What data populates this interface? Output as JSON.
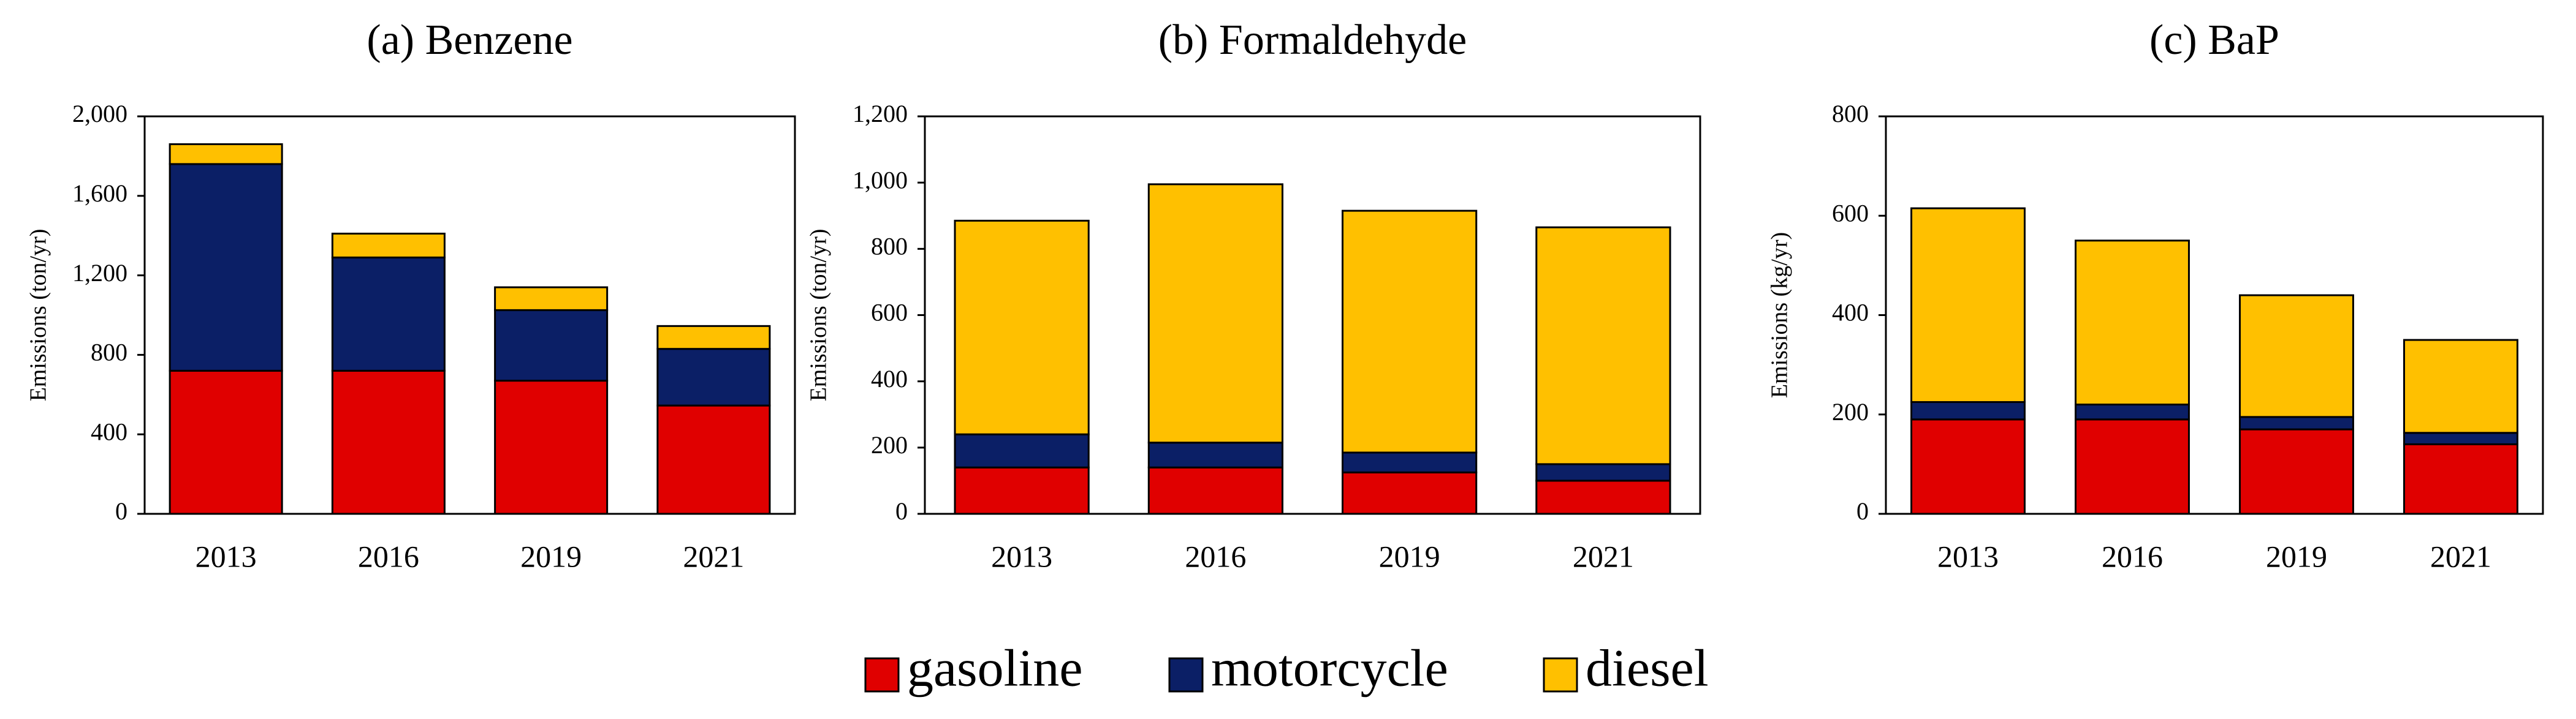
{
  "legend": [
    {
      "name": "gasoline",
      "color": "#e00000"
    },
    {
      "name": "motorcycle",
      "color": "#0b1f66"
    },
    {
      "name": "diesel",
      "color": "#ffc000"
    }
  ],
  "chart_data": [
    {
      "type": "bar",
      "stacked": true,
      "title": "(a) Benzene",
      "y_label": "Emissions (ton/yr)",
      "categories": [
        "2013",
        "2016",
        "2019",
        "2021"
      ],
      "series": [
        {
          "values": [
            720,
            720,
            670,
            545
          ]
        },
        {
          "values": [
            1040,
            570,
            355,
            285
          ]
        },
        {
          "values": [
            100,
            120,
            115,
            115
          ]
        }
      ],
      "ylim": [
        0,
        2000
      ],
      "yticks": [
        0,
        400,
        800,
        {
          "value": 1200,
          "label": "1,200"
        },
        {
          "value": 1600,
          "label": "1,600"
        },
        {
          "value": 2000,
          "label": "2,000"
        }
      ]
    },
    {
      "type": "bar",
      "stacked": true,
      "title": "(b) Formaldehyde",
      "y_label": "Emissions (ton/yr)",
      "categories": [
        "2013",
        "2016",
        "2019",
        "2021"
      ],
      "series": [
        {
          "values": [
            140,
            140,
            125,
            100
          ]
        },
        {
          "values": [
            100,
            75,
            60,
            50
          ]
        },
        {
          "values": [
            645,
            780,
            730,
            715
          ]
        }
      ],
      "ylim": [
        0,
        1200
      ],
      "yticks": [
        0,
        200,
        400,
        600,
        800,
        {
          "value": 1000,
          "label": "1,000"
        },
        {
          "value": 1200,
          "label": "1,200"
        }
      ]
    },
    {
      "type": "bar",
      "stacked": true,
      "title": "(c) BaP",
      "y_label": "Emissions (kg/yr)",
      "categories": [
        "2013",
        "2016",
        "2019",
        "2021"
      ],
      "series": [
        {
          "values": [
            190,
            190,
            170,
            140
          ]
        },
        {
          "values": [
            35,
            30,
            25,
            23
          ]
        },
        {
          "values": [
            390,
            330,
            245,
            187
          ]
        }
      ],
      "ylim": [
        0,
        800
      ],
      "yticks": [
        0,
        200,
        400,
        600,
        800
      ]
    }
  ]
}
